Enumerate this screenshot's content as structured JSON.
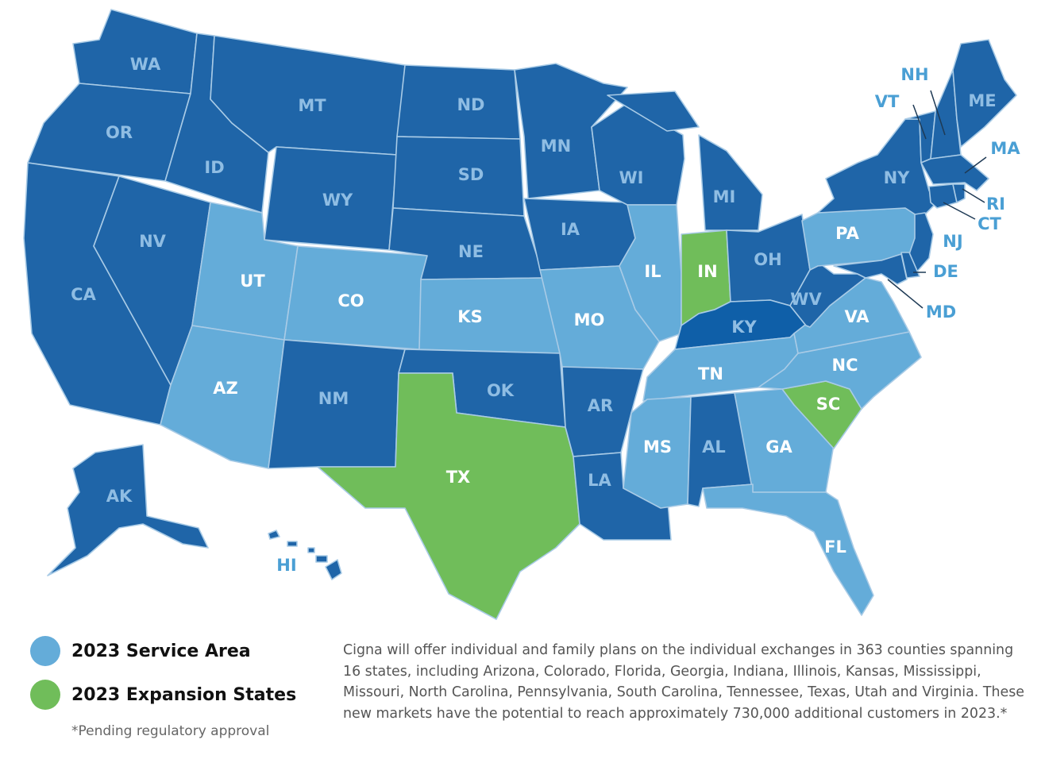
{
  "colors": {
    "standard": "#1f65a8",
    "standard_dark": "#1a5c9c",
    "service_area": "#64acd9",
    "expansion": "#70bd5a",
    "kentucky": "#0f5fa8",
    "border": "#a9cbe6",
    "label_outside": "#4a9fd4"
  },
  "map": {
    "states": [
      {
        "code": "WA",
        "status": "other"
      },
      {
        "code": "OR",
        "status": "other"
      },
      {
        "code": "CA",
        "status": "other"
      },
      {
        "code": "ID",
        "status": "other"
      },
      {
        "code": "NV",
        "status": "other"
      },
      {
        "code": "MT",
        "status": "other"
      },
      {
        "code": "WY",
        "status": "other"
      },
      {
        "code": "UT",
        "status": "service"
      },
      {
        "code": "AZ",
        "status": "service"
      },
      {
        "code": "CO",
        "status": "service"
      },
      {
        "code": "NM",
        "status": "other"
      },
      {
        "code": "ND",
        "status": "other"
      },
      {
        "code": "SD",
        "status": "other"
      },
      {
        "code": "NE",
        "status": "other"
      },
      {
        "code": "KS",
        "status": "service"
      },
      {
        "code": "OK",
        "status": "other"
      },
      {
        "code": "TX",
        "status": "expansion"
      },
      {
        "code": "MN",
        "status": "other"
      },
      {
        "code": "IA",
        "status": "other"
      },
      {
        "code": "MO",
        "status": "service"
      },
      {
        "code": "AR",
        "status": "other"
      },
      {
        "code": "LA",
        "status": "other"
      },
      {
        "code": "WI",
        "status": "other"
      },
      {
        "code": "IL",
        "status": "service"
      },
      {
        "code": "MI",
        "status": "other"
      },
      {
        "code": "IN",
        "status": "expansion"
      },
      {
        "code": "OH",
        "status": "other"
      },
      {
        "code": "KY",
        "status": "other"
      },
      {
        "code": "TN",
        "status": "service"
      },
      {
        "code": "MS",
        "status": "service"
      },
      {
        "code": "AL",
        "status": "other"
      },
      {
        "code": "GA",
        "status": "service"
      },
      {
        "code": "FL",
        "status": "service"
      },
      {
        "code": "SC",
        "status": "expansion"
      },
      {
        "code": "NC",
        "status": "service"
      },
      {
        "code": "VA",
        "status": "service"
      },
      {
        "code": "WV",
        "status": "other"
      },
      {
        "code": "PA",
        "status": "service"
      },
      {
        "code": "NY",
        "status": "other"
      },
      {
        "code": "VT",
        "status": "other"
      },
      {
        "code": "NH",
        "status": "other"
      },
      {
        "code": "ME",
        "status": "other"
      },
      {
        "code": "MA",
        "status": "other"
      },
      {
        "code": "RI",
        "status": "other"
      },
      {
        "code": "CT",
        "status": "other"
      },
      {
        "code": "NJ",
        "status": "other"
      },
      {
        "code": "DE",
        "status": "other"
      },
      {
        "code": "MD",
        "status": "other"
      },
      {
        "code": "AK",
        "status": "other"
      },
      {
        "code": "HI",
        "status": "other"
      }
    ]
  },
  "legend": {
    "service_area": "2023 Service Area",
    "expansion_states": "2023 Expansion States",
    "footnote": "*Pending regulatory approval"
  },
  "description": "Cigna will offer individual and family plans on the individual exchanges in 363 counties spanning 16 states, including Arizona, Colorado, Florida, Georgia, Indiana, Illinois, Kansas, Mississippi, Missouri, North Carolina, Pennsylvania, South Carolina, Tennessee, Texas, Utah and Virginia. These new markets have the potential to reach approximately 730,000 additional customers in 2023.*"
}
